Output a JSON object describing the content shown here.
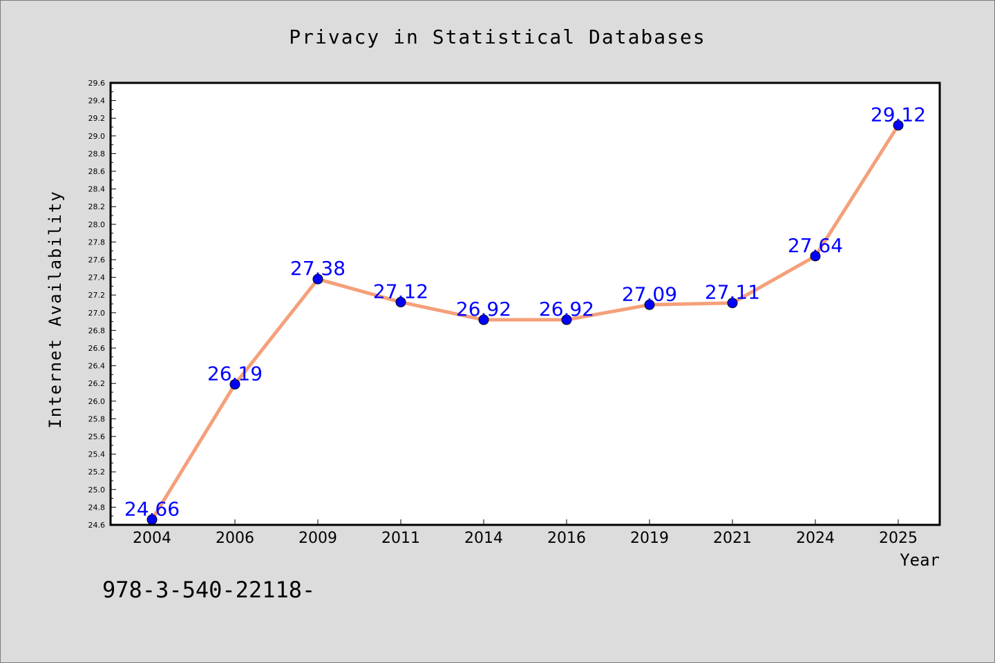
{
  "chart_data": {
    "type": "line",
    "title": "Privacy in Statistical Databases",
    "xlabel": "Year",
    "ylabel": "Internet Availability",
    "categories": [
      "2004",
      "2006",
      "2009",
      "2011",
      "2014",
      "2016",
      "2019",
      "2021",
      "2024",
      "2025"
    ],
    "series": [
      {
        "values": [
          24.66,
          26.19,
          27.38,
          27.12,
          26.92,
          26.92,
          27.09,
          27.11,
          27.64,
          29.12
        ],
        "line_color": "#f4a07a",
        "marker_color": "#0000ff"
      }
    ],
    "data_labels": [
      "24.66",
      "26.19",
      "27.38",
      "27.12",
      "26.92",
      "26.92",
      "27.09",
      "27.11",
      "27.64",
      "29.12"
    ],
    "ylim": [
      24.6,
      29.6
    ],
    "y_ticks": [
      "24.6",
      "24.8",
      "25.0",
      "25.2",
      "25.4",
      "25.6",
      "25.8",
      "26.0",
      "26.2",
      "26.4",
      "26.6",
      "26.8",
      "27.0",
      "27.2",
      "27.4",
      "27.6",
      "27.8",
      "28.0",
      "28.2",
      "28.4",
      "28.6",
      "28.8",
      "29.0",
      "29.2",
      "29.4",
      "29.6"
    ],
    "grid": false,
    "label_color": "#0000ff"
  },
  "footer": {
    "annotation": "978-3-540-22118-"
  }
}
